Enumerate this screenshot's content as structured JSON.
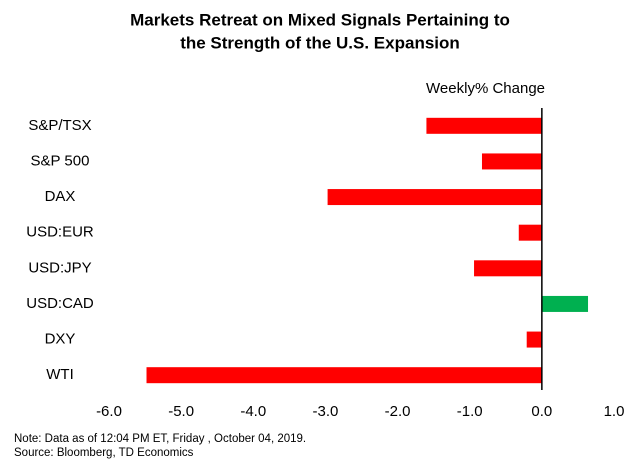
{
  "chart_data": {
    "type": "bar",
    "orientation": "horizontal",
    "title": [
      "Markets Retreat on Mixed Signals Pertaining to",
      "the Strength of the U.S. Expansion"
    ],
    "axis_label": "Weekly% Change",
    "categories": [
      "S&P/TSX",
      "S&P 500",
      "DAX",
      "USD:EUR",
      "USD:JPY",
      "USD:CAD",
      "DXY",
      "WTI"
    ],
    "values": [
      -1.6,
      -0.83,
      -2.97,
      -0.32,
      -0.94,
      0.64,
      -0.21,
      -5.48
    ],
    "colors": [
      "#ff0000",
      "#ff0000",
      "#ff0000",
      "#ff0000",
      "#ff0000",
      "#00b050",
      "#ff0000",
      "#ff0000"
    ],
    "xlim": [
      -6,
      1
    ],
    "xticks": [
      {
        "value": -6,
        "label": "-6.0"
      },
      {
        "value": -5,
        "label": "-5.0"
      },
      {
        "value": -4,
        "label": "-4.0"
      },
      {
        "value": -3,
        "label": "-3.0"
      },
      {
        "value": -2,
        "label": "-2.0"
      },
      {
        "value": -1,
        "label": "-1.0"
      },
      {
        "value": 0,
        "label": "0.0"
      },
      {
        "value": 1,
        "label": "1.0"
      }
    ],
    "grid": false,
    "notes": [
      "Note: Data as of 12:04 PM ET, Friday , October 04, 2019.",
      "Source: Bloomberg, TD Economics"
    ]
  }
}
